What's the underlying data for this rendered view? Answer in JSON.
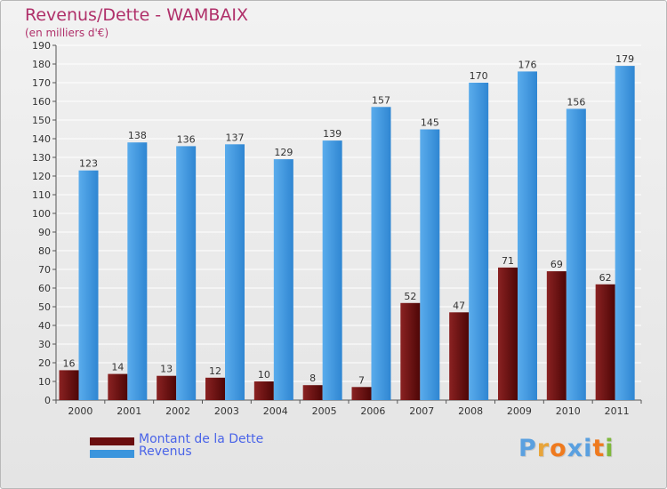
{
  "title": "Revenus/Dette - WAMBAIX",
  "subtitle": "(en milliers d'€)",
  "colors": {
    "title": "#b0306a",
    "dette": "#6b0e0e",
    "revenus": "#3b95dd",
    "legend_text": "#4a64e8"
  },
  "legend": [
    {
      "label": "Montant de la Dette",
      "color": "#6b0e0e"
    },
    {
      "label": "Revenus",
      "color": "#3b95dd"
    }
  ],
  "logo": {
    "text": "Proxiti",
    "letter_colors": [
      "#5aa0e0",
      "#e8a43a",
      "#ef7a1e",
      "#5aa0e0",
      "#5aa0e0",
      "#ef7a1e",
      "#7fb83c"
    ]
  },
  "chart_data": {
    "type": "bar",
    "title": "Revenus/Dette - WAMBAIX",
    "subtitle": "(en milliers d'€)",
    "categories": [
      "2000",
      "2001",
      "2002",
      "2003",
      "2004",
      "2005",
      "2006",
      "2007",
      "2008",
      "2009",
      "2010",
      "2011"
    ],
    "series": [
      {
        "name": "Montant de la Dette",
        "values": [
          16,
          14,
          13,
          12,
          10,
          8,
          7,
          52,
          47,
          71,
          69,
          62
        ]
      },
      {
        "name": "Revenus",
        "values": [
          123,
          138,
          136,
          137,
          129,
          139,
          157,
          145,
          170,
          176,
          156,
          179
        ]
      }
    ],
    "ylim": [
      0,
      190
    ],
    "ytick_step": 10,
    "grid": true,
    "legend_position": "bottom-left",
    "data_labels": true
  }
}
